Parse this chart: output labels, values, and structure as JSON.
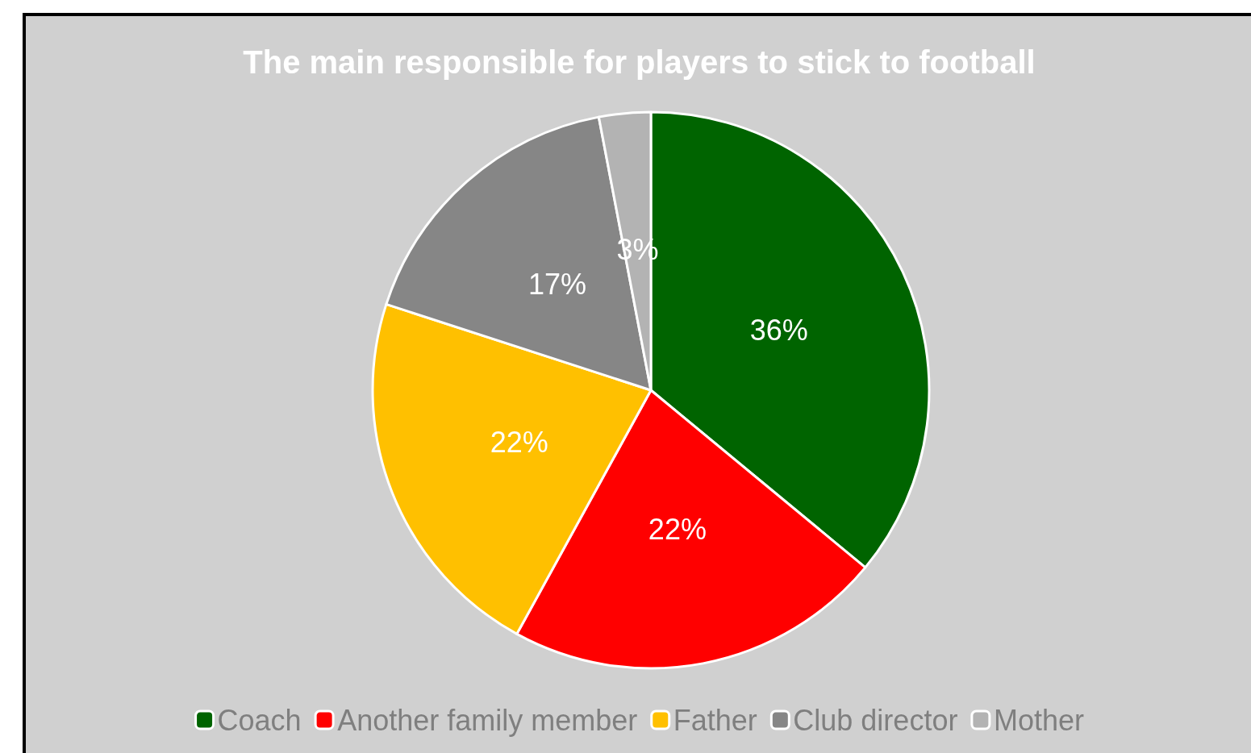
{
  "chart_data": {
    "type": "pie",
    "title": "The main responsible for players to stick to football",
    "categories": [
      "Coach",
      "Another family member",
      "Father",
      "Club director",
      "Mother"
    ],
    "values": [
      36,
      22,
      22,
      17,
      3
    ],
    "colors": [
      "#006400",
      "#ff0000",
      "#ffc000",
      "#868686",
      "#b3b3b3"
    ],
    "value_labels": [
      "36%",
      "22%",
      "22%",
      "17%",
      "3%"
    ],
    "legend": "bottom"
  }
}
